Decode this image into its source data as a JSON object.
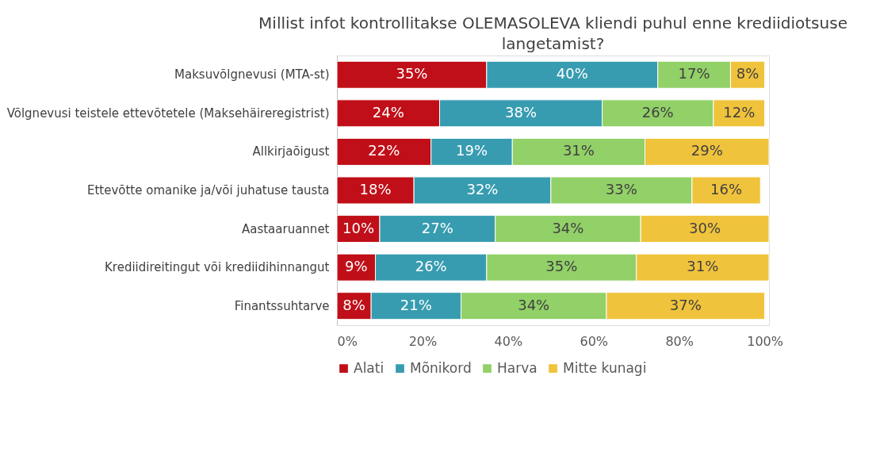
{
  "chart_data": {
    "type": "bar",
    "orientation": "horizontal",
    "stacked": true,
    "title": "Millist infot kontrollitakse OLEMASOLEVA kliendi puhul enne krediidiotsuse langetamist?",
    "categories": [
      "Maksuvõlgnevusi (MTA-st)",
      "Võlgnevusi teistele ettevõtetele (Maksehäireregistrist)",
      "Allkirjaõigust",
      "Ettevõtte omanike ja/või juhatuse tausta",
      "Aastaaruannet",
      "Krediidireitingut või krediidihinnangut",
      "Finantssuhtarve"
    ],
    "series": [
      {
        "name": "Alati",
        "color": "#c00f18",
        "values": [
          35,
          24,
          22,
          18,
          10,
          9,
          8
        ],
        "value_labels": [
          "35%",
          "24%",
          "22%",
          "18%",
          "10%",
          "9%",
          "8%"
        ]
      },
      {
        "name": "Mõnikord",
        "color": "#379cb0",
        "values": [
          40,
          38,
          19,
          32,
          27,
          26,
          21
        ],
        "value_labels": [
          "40%",
          "38%",
          "19%",
          "32%",
          "27%",
          "26%",
          "21%"
        ]
      },
      {
        "name": "Harva",
        "color": "#92d068",
        "values": [
          17,
          26,
          31,
          33,
          34,
          35,
          34
        ],
        "value_labels": [
          "17%",
          "26%",
          "31%",
          "33%",
          "34%",
          "35%",
          "34%"
        ]
      },
      {
        "name": "Mitte kunagi",
        "color": "#f0c33c",
        "values": [
          8,
          12,
          29,
          16,
          30,
          31,
          37
        ],
        "value_labels": [
          "8%",
          "12%",
          "29%",
          "16%",
          "30%",
          "31%",
          "37%"
        ]
      }
    ],
    "xlim": [
      0,
      101
    ],
    "xticks": [
      {
        "value": 0,
        "label": "0%"
      },
      {
        "value": 20,
        "label": "20%"
      },
      {
        "value": 40,
        "label": "40%"
      },
      {
        "value": 60,
        "label": "60%"
      },
      {
        "value": 80,
        "label": "80%"
      },
      {
        "value": 100,
        "label": "100%"
      }
    ],
    "grid": false,
    "legend": "bottom"
  }
}
